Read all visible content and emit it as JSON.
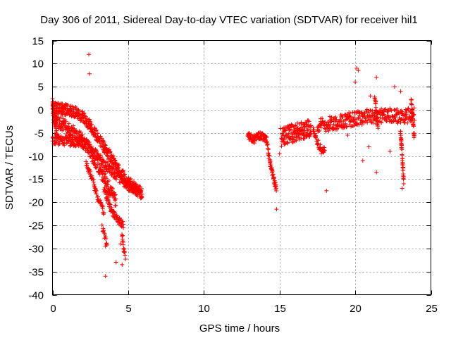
{
  "chart_data": {
    "type": "scatter",
    "title": "Day 306 of 2011, Sidereal Day-to-day VTEC variation (SDTVAR) for receiver hil1",
    "xlabel": "GPS time / hours",
    "ylabel": "SDTVAR / TECUs",
    "xlim": [
      0,
      25
    ],
    "ylim": [
      -40,
      15
    ],
    "xticks": [
      0,
      5,
      10,
      15,
      20,
      25
    ],
    "yticks": [
      -40,
      -35,
      -30,
      -25,
      -20,
      -15,
      -10,
      -5,
      0,
      5,
      10,
      15
    ],
    "xtick_labels": [
      "0",
      "5",
      "10",
      "15",
      "20",
      "25"
    ],
    "ytick_labels": [
      "-40",
      "-35",
      "-30",
      "-25",
      "-20",
      "-15",
      "-10",
      "-5",
      "0",
      "5",
      "10",
      "15"
    ],
    "grid": true,
    "marker": "+",
    "color": "#ff0000",
    "segments": [
      {
        "name": "band-upper",
        "x": [
          0.0,
          0.5,
          1.0,
          1.5,
          2.0,
          2.5,
          3.0,
          3.5,
          4.0,
          4.5,
          5.0,
          5.5,
          5.9
        ],
        "y": [
          0.5,
          0.2,
          0.0,
          -0.5,
          -1.5,
          -3.5,
          -6.0,
          -8.5,
          -11.0,
          -13.5,
          -15.5,
          -17.0,
          -18.0
        ],
        "spread": 1.2,
        "n": 420
      },
      {
        "name": "band-lower",
        "x": [
          0.0,
          1.0,
          2.0,
          2.5,
          3.0,
          3.5,
          4.0,
          4.5,
          5.0,
          5.5,
          5.9
        ],
        "y": [
          -6.5,
          -6.8,
          -7.0,
          -8.0,
          -10.0,
          -12.0,
          -13.5,
          -15.0,
          -16.5,
          -17.5,
          -18.5
        ],
        "spread": 1.0,
        "n": 320
      },
      {
        "name": "band-mid",
        "x": [
          0.0,
          0.6,
          1.2,
          1.8,
          2.4,
          3.0,
          3.6,
          4.2
        ],
        "y": [
          -2.0,
          -3.0,
          -4.5,
          -6.0,
          -8.5,
          -12.0,
          -16.0,
          -20.0
        ],
        "spread": 1.5,
        "n": 260
      },
      {
        "name": "dive-a",
        "x": [
          2.2,
          2.6,
          3.0,
          3.4
        ],
        "y": [
          -11.0,
          -15.0,
          -19.0,
          -22.0
        ],
        "spread": 0.8,
        "n": 60
      },
      {
        "name": "dive-b",
        "x": [
          3.4,
          3.7,
          4.0,
          4.4,
          4.7
        ],
        "y": [
          -17.0,
          -20.0,
          -22.5,
          -24.0,
          -25.0
        ],
        "spread": 0.8,
        "n": 80
      },
      {
        "name": "dive-c",
        "x": [
          3.3,
          3.5,
          3.6
        ],
        "y": [
          -25.5,
          -28.0,
          -29.5
        ],
        "spread": 0.6,
        "n": 16
      },
      {
        "name": "dive-d",
        "x": [
          4.6,
          4.7,
          4.8
        ],
        "y": [
          -27.0,
          -30.0,
          -32.0
        ],
        "spread": 0.6,
        "n": 16
      },
      {
        "name": "start-column",
        "x": [
          0.0,
          0.15,
          0.3
        ],
        "y": [
          2.0,
          -2.0,
          -6.0
        ],
        "spread": 1.0,
        "n": 60
      },
      {
        "name": "evening-arc",
        "x": [
          12.9,
          13.3,
          13.7,
          14.0,
          14.2
        ],
        "y": [
          -5.5,
          -6.5,
          -5.5,
          -6.0,
          -7.0
        ],
        "spread": 0.8,
        "n": 90
      },
      {
        "name": "evening-dive",
        "x": [
          14.2,
          14.4,
          14.6,
          14.8
        ],
        "y": [
          -8.0,
          -12.0,
          -15.0,
          -17.0
        ],
        "spread": 0.8,
        "n": 50
      },
      {
        "name": "night-cluster",
        "x": [
          15.1,
          15.5,
          15.9,
          16.3,
          16.7,
          17.1
        ],
        "y": [
          -6.0,
          -5.5,
          -5.0,
          -4.5,
          -4.5,
          -4.0
        ],
        "spread": 2.0,
        "n": 160
      },
      {
        "name": "night-dip",
        "x": [
          17.2,
          17.5,
          17.8,
          18.0
        ],
        "y": [
          -4.5,
          -7.0,
          -9.0,
          -8.0
        ],
        "spread": 0.8,
        "n": 40
      },
      {
        "name": "night-band",
        "x": [
          17.5,
          18.3,
          19.1,
          19.9,
          20.7,
          21.5,
          22.3,
          23.1,
          23.9
        ],
        "y": [
          -3.5,
          -3.0,
          -2.5,
          -2.0,
          -1.5,
          -1.5,
          -1.0,
          -1.5,
          -1.0
        ],
        "spread": 1.6,
        "n": 340
      },
      {
        "name": "late-column-a",
        "x": [
          23.0,
          23.1,
          23.2
        ],
        "y": [
          -5.0,
          -10.0,
          -15.0
        ],
        "spread": 0.8,
        "n": 40
      },
      {
        "name": "late-column-b",
        "x": [
          21.3,
          21.4,
          21.5
        ],
        "y": [
          3.0,
          0.0,
          -4.0
        ],
        "spread": 0.8,
        "n": 24
      },
      {
        "name": "late-column-c",
        "x": [
          23.7,
          23.8,
          23.9
        ],
        "y": [
          2.0,
          -2.0,
          -6.0
        ],
        "spread": 0.8,
        "n": 28
      }
    ],
    "outliers": [
      {
        "x": 2.4,
        "y": 12.0
      },
      {
        "x": 2.45,
        "y": 7.8
      },
      {
        "x": 3.5,
        "y": -36.0
      },
      {
        "x": 4.2,
        "y": -33.0
      },
      {
        "x": 4.6,
        "y": -33.5
      },
      {
        "x": 4.5,
        "y": -29.0
      },
      {
        "x": 3.5,
        "y": -29.5
      },
      {
        "x": 14.8,
        "y": -21.5
      },
      {
        "x": 18.1,
        "y": -17.5
      },
      {
        "x": 20.1,
        "y": 9.0
      },
      {
        "x": 20.2,
        "y": 8.5
      },
      {
        "x": 20.0,
        "y": 6.0
      },
      {
        "x": 21.4,
        "y": 7.0
      },
      {
        "x": 21.0,
        "y": 3.0
      },
      {
        "x": 22.6,
        "y": 5.0
      },
      {
        "x": 23.0,
        "y": 4.0
      },
      {
        "x": 20.5,
        "y": -11.0
      },
      {
        "x": 21.4,
        "y": -13.5
      },
      {
        "x": 23.1,
        "y": -17.0
      },
      {
        "x": 23.2,
        "y": -16.0
      },
      {
        "x": 22.3,
        "y": -9.0
      },
      {
        "x": 20.9,
        "y": -8.0
      },
      {
        "x": 19.5,
        "y": -5.5
      },
      {
        "x": 15.0,
        "y": -9.5
      }
    ]
  }
}
